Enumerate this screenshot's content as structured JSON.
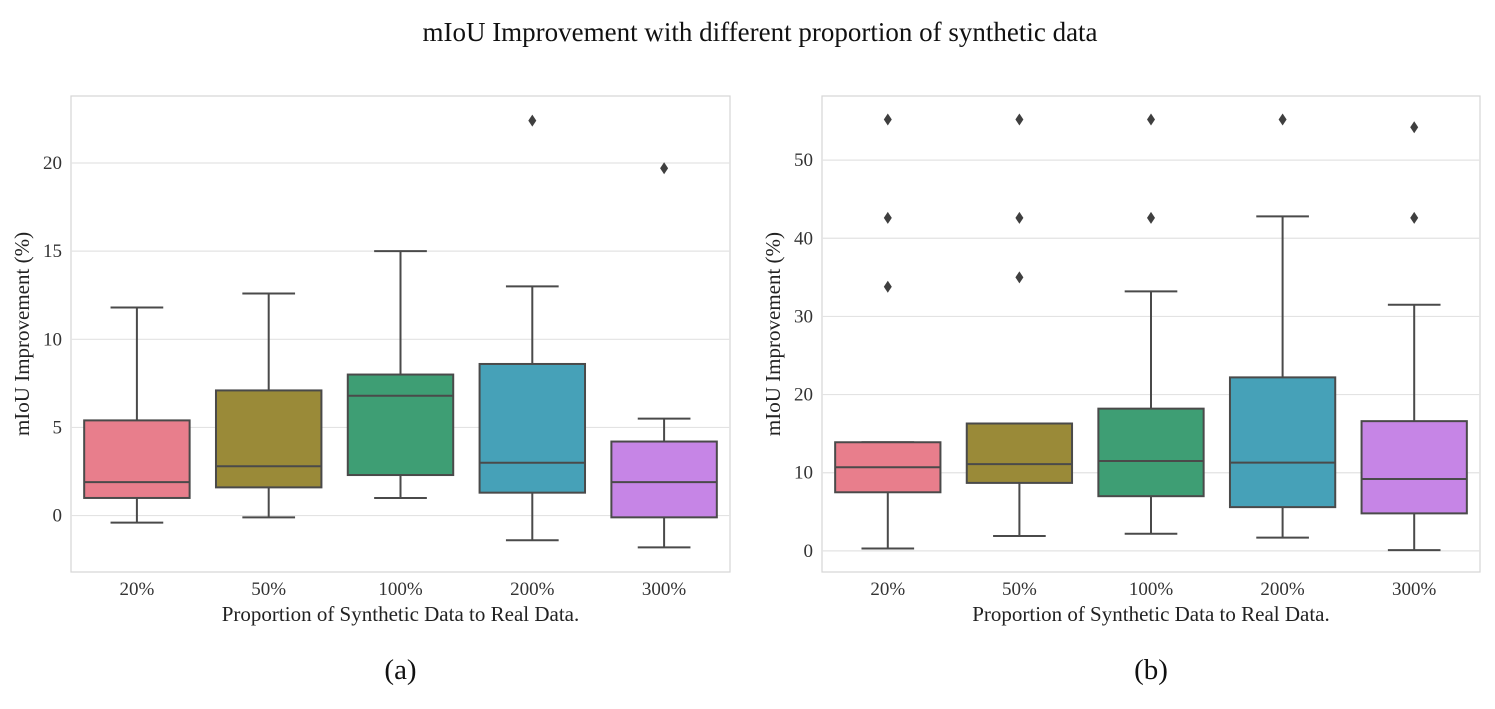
{
  "figure": {
    "title": "mIoU Improvement with different proportion of synthetic data"
  },
  "colors": {
    "grid": "#e3e3e3",
    "frame": "#d6d6d6",
    "line": "#4a4a4a",
    "outlier": "#3f3f3f",
    "series": [
      "#e87e8c",
      "#9a8a38",
      "#3e9e74",
      "#46a1b8",
      "#c685e6"
    ]
  },
  "chart_data": [
    {
      "id": "a",
      "type": "box",
      "caption": "(a)",
      "xlabel": "Proportion of Synthetic Data to Real Data.",
      "ylabel": "mIoU Improvement (%)",
      "ylim": [
        -3.2,
        23.8
      ],
      "yticks": [
        0,
        5,
        10,
        15,
        20
      ],
      "ytick_labels": [
        "0",
        "5",
        "10",
        "15",
        "20"
      ],
      "grid": true,
      "categories": [
        "20%",
        "50%",
        "100%",
        "200%",
        "300%"
      ],
      "boxes": [
        {
          "category": "20%",
          "whisker_low": -0.4,
          "q1": 1.0,
          "median": 1.9,
          "q3": 5.4,
          "whisker_high": 11.8,
          "outliers": []
        },
        {
          "category": "50%",
          "whisker_low": -0.1,
          "q1": 1.6,
          "median": 2.8,
          "q3": 7.1,
          "whisker_high": 12.6,
          "outliers": []
        },
        {
          "category": "100%",
          "whisker_low": 1.0,
          "q1": 2.3,
          "median": 6.8,
          "q3": 8.0,
          "whisker_high": 15.0,
          "outliers": []
        },
        {
          "category": "200%",
          "whisker_low": -1.4,
          "q1": 1.3,
          "median": 3.0,
          "q3": 8.6,
          "whisker_high": 13.0,
          "outliers": [
            22.4
          ]
        },
        {
          "category": "300%",
          "whisker_low": -1.8,
          "q1": -0.1,
          "median": 1.9,
          "q3": 4.2,
          "whisker_high": 5.5,
          "outliers": [
            19.7
          ]
        }
      ]
    },
    {
      "id": "b",
      "type": "box",
      "caption": "(b)",
      "xlabel": "Proportion of Synthetic Data to Real Data.",
      "ylabel": "mIoU Improvement (%)",
      "ylim": [
        -2.7,
        58.2
      ],
      "yticks": [
        0,
        10,
        20,
        30,
        40,
        50
      ],
      "ytick_labels": [
        "0",
        "10",
        "20",
        "30",
        "40",
        "50"
      ],
      "grid": true,
      "categories": [
        "20%",
        "50%",
        "100%",
        "200%",
        "300%"
      ],
      "boxes": [
        {
          "category": "20%",
          "whisker_low": 0.3,
          "q1": 7.5,
          "median": 10.7,
          "q3": 13.9,
          "whisker_high": 13.9,
          "outliers": [
            33.8,
            42.6,
            55.2
          ]
        },
        {
          "category": "50%",
          "whisker_low": 1.9,
          "q1": 8.7,
          "median": 11.1,
          "q3": 16.3,
          "whisker_high": 16.3,
          "outliers": [
            35.0,
            42.6,
            55.2
          ]
        },
        {
          "category": "100%",
          "whisker_low": 2.2,
          "q1": 7.0,
          "median": 11.5,
          "q3": 18.2,
          "whisker_high": 33.2,
          "outliers": [
            42.6,
            55.2
          ]
        },
        {
          "category": "200%",
          "whisker_low": 1.7,
          "q1": 5.6,
          "median": 11.3,
          "q3": 22.2,
          "whisker_high": 42.8,
          "outliers": [
            55.2
          ]
        },
        {
          "category": "300%",
          "whisker_low": 0.1,
          "q1": 4.8,
          "median": 9.2,
          "q3": 16.6,
          "whisker_high": 31.5,
          "outliers": [
            42.6,
            54.2
          ]
        }
      ]
    }
  ]
}
